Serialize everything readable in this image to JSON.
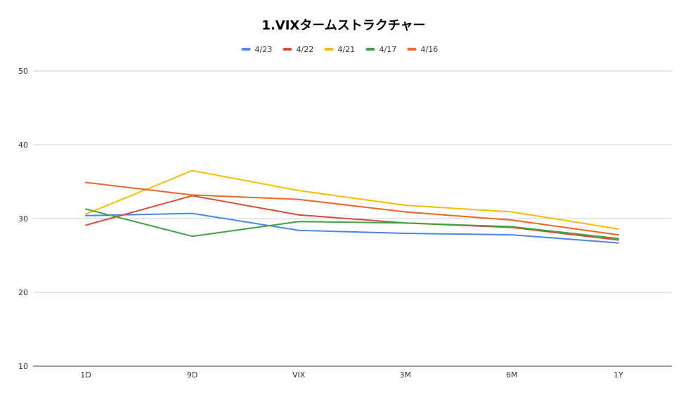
{
  "chart_data": {
    "type": "line",
    "title": "1.VIXタームストラクチャー",
    "xlabel": "",
    "ylabel": "",
    "categories": [
      "1D",
      "9D",
      "VIX",
      "3M",
      "6M",
      "1Y"
    ],
    "ylim": [
      10,
      50
    ],
    "yticks": [
      10,
      20,
      30,
      40,
      50
    ],
    "grid": true,
    "legend_position": "top",
    "series": [
      {
        "name": "4/23",
        "color": "#4a86e8",
        "values": [
          30.4,
          30.7,
          28.4,
          28.0,
          27.8,
          26.7
        ]
      },
      {
        "name": "4/22",
        "color": "#dd4b39",
        "values": [
          29.1,
          33.1,
          30.5,
          29.4,
          28.8,
          27.1
        ]
      },
      {
        "name": "4/21",
        "color": "#fbbc04",
        "values": [
          30.6,
          36.5,
          33.8,
          31.8,
          30.9,
          28.6
        ]
      },
      {
        "name": "4/17",
        "color": "#3fa243",
        "values": [
          31.3,
          27.6,
          29.6,
          29.4,
          28.9,
          27.3
        ]
      },
      {
        "name": "4/16",
        "color": "#f46524",
        "values": [
          34.9,
          33.2,
          32.6,
          30.9,
          29.8,
          27.8
        ]
      }
    ]
  }
}
